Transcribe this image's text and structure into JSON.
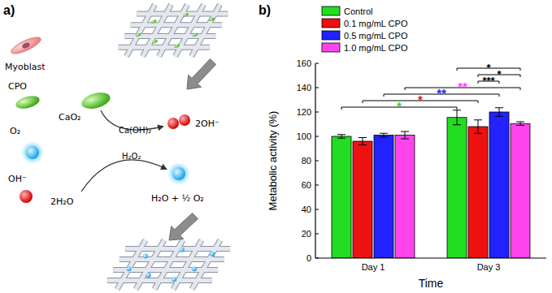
{
  "chart_data": {
    "type": "bar",
    "title": "b)",
    "x_label": "Time",
    "y_label": "Metabolic activity (%)",
    "categories": [
      "Day 1",
      "Day 3"
    ],
    "series": [
      {
        "name": "Control",
        "color": "#22dd22",
        "values": [
          100,
          115.5
        ],
        "errors": [
          1.5,
          6
        ]
      },
      {
        "name": "0.1 mg/mL CPO",
        "color": "#ee1111",
        "values": [
          96,
          108
        ],
        "errors": [
          3,
          5.5
        ]
      },
      {
        "name": "0.5 mg/mL CPO",
        "color": "#2222ff",
        "values": [
          101,
          120
        ],
        "errors": [
          1.5,
          3.5
        ]
      },
      {
        "name": "1.0 mg/mL CPO",
        "color": "#ff44ee",
        "values": [
          101,
          110.5
        ],
        "errors": [
          3,
          1.5
        ]
      }
    ],
    "ylim": [
      0,
      160
    ],
    "yticks": [
      0,
      20,
      40,
      60,
      80,
      100,
      120,
      140,
      160
    ],
    "grid": false,
    "legend": "upper left",
    "significance": [
      {
        "a": {
          "category": "Day 3",
          "series": "Control"
        },
        "b": {
          "category": "Day 3",
          "series": "1.0 mg/mL CPO"
        },
        "label": "*"
      },
      {
        "a": {
          "category": "Day 3",
          "series": "0.1 mg/mL CPO"
        },
        "b": {
          "category": "Day 3",
          "series": "1.0 mg/mL CPO"
        },
        "label": "*"
      },
      {
        "a": {
          "category": "Day 3",
          "series": "0.1 mg/mL CPO"
        },
        "b": {
          "category": "Day 3",
          "series": "0.5 mg/mL CPO"
        },
        "label": "***"
      },
      {
        "a": {
          "category": "Day 1",
          "series": "1.0 mg/mL CPO"
        },
        "b": {
          "category": "Day 3",
          "series": "1.0 mg/mL CPO"
        },
        "label": "**"
      },
      {
        "a": {
          "category": "Day 1",
          "series": "0.5 mg/mL CPO"
        },
        "b": {
          "category": "Day 3",
          "series": "0.5 mg/mL CPO"
        },
        "label": "**"
      },
      {
        "a": {
          "category": "Day 1",
          "series": "0.1 mg/mL CPO"
        },
        "b": {
          "category": "Day 3",
          "series": "0.1 mg/mL CPO"
        },
        "label": "*"
      },
      {
        "a": {
          "category": "Day 1",
          "series": "Control"
        },
        "b": {
          "category": "Day 3",
          "series": "Control"
        },
        "label": "*"
      }
    ]
  },
  "diagram": {
    "panel_label": "a)",
    "legend_items": [
      "Myoblast",
      "CPO",
      "O₂",
      "OH⁻"
    ],
    "reaction": {
      "reactant": "CaO₂",
      "intermediate": "Ca(OH)₂",
      "reagent": "2H₂O",
      "cofactor": "H₂O₂",
      "product_1": "2OH⁻",
      "product_2": "H₂O + ½ O₂"
    }
  }
}
